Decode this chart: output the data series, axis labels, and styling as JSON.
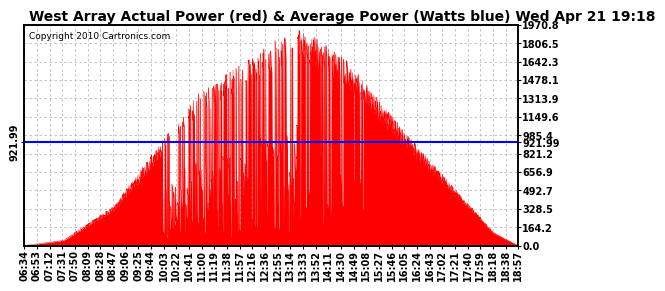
{
  "title": "West Array Actual Power (red) & Average Power (Watts blue) Wed Apr 21 19:18",
  "copyright": "Copyright 2010 Cartronics.com",
  "ymax": 1970.8,
  "ymin": 0.0,
  "yticks": [
    0.0,
    164.2,
    328.5,
    492.7,
    656.9,
    821.2,
    985.4,
    1149.6,
    1313.9,
    1478.1,
    1642.3,
    1806.5,
    1970.8
  ],
  "avg_power": 921.99,
  "avg_label": "921.99",
  "background_color": "#ffffff",
  "fill_color": "#ff0000",
  "avg_line_color": "#0000ff",
  "grid_color": "#bbbbbb",
  "title_fontsize": 10,
  "copyright_fontsize": 6.5,
  "tick_fontsize": 7,
  "xtick_labels": [
    "06:34",
    "06:53",
    "07:12",
    "07:31",
    "07:50",
    "08:09",
    "08:28",
    "08:47",
    "09:06",
    "09:25",
    "09:44",
    "10:03",
    "10:22",
    "10:41",
    "11:00",
    "11:19",
    "11:38",
    "11:57",
    "12:16",
    "12:36",
    "12:55",
    "13:14",
    "13:33",
    "13:52",
    "14:11",
    "14:30",
    "14:49",
    "15:08",
    "15:27",
    "15:46",
    "16:05",
    "16:24",
    "16:43",
    "17:02",
    "17:21",
    "17:40",
    "17:59",
    "18:18",
    "18:38",
    "18:57"
  ]
}
